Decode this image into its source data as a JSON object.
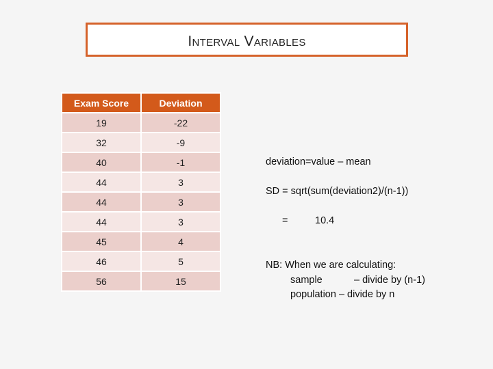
{
  "title": "Interval Variables",
  "table": {
    "headers": [
      "Exam Score",
      "Deviation"
    ],
    "rows": [
      [
        "19",
        "-22"
      ],
      [
        "32",
        "-9"
      ],
      [
        "40",
        "-1"
      ],
      [
        "44",
        "3"
      ],
      [
        "44",
        "3"
      ],
      [
        "44",
        "3"
      ],
      [
        "45",
        "4"
      ],
      [
        "46",
        "5"
      ],
      [
        "56",
        "15"
      ]
    ]
  },
  "notes": {
    "deviation_formula": "deviation=value – mean",
    "sd_formula": "SD = sqrt(sum(deviation2)/(n-1))",
    "equals": "=",
    "sd_value": "10.4",
    "nb_line": "NB: When we are calculating:",
    "sample_label": "sample",
    "sample_rule": "– divide by (n-1)",
    "population_rule": "population – divide by n"
  },
  "colors": {
    "accent": "#d35a1b",
    "row_dark": "#ebcfcb",
    "row_light": "#f5e6e4"
  }
}
